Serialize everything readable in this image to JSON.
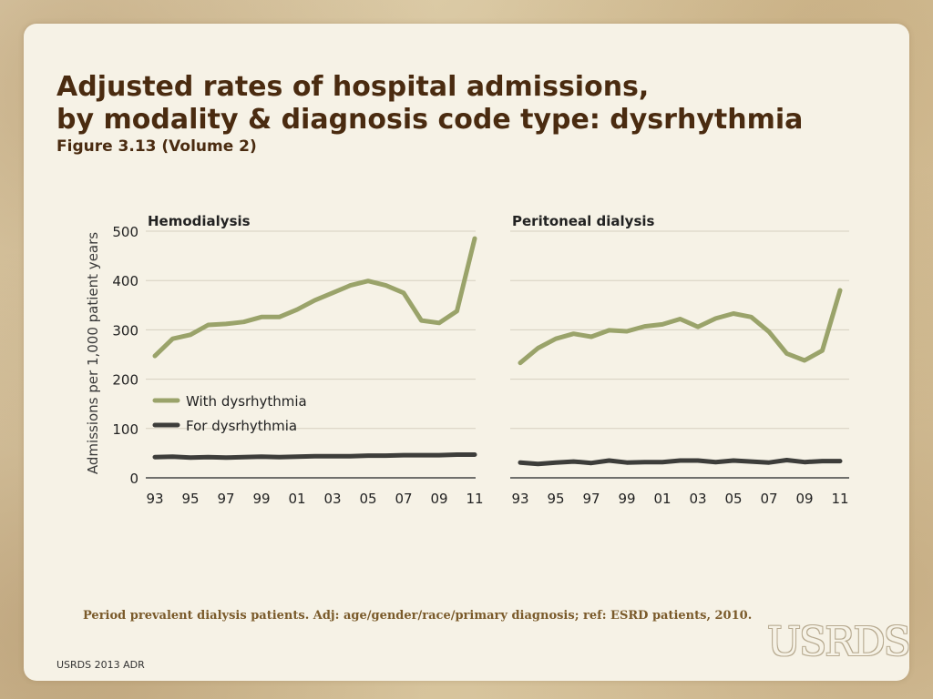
{
  "title_line1": "Adjusted rates of hospital admissions,",
  "title_line2": "by modality & diagnosis code type: dysrhythmia",
  "subtitle": "Figure 3.13 (Volume 2)",
  "footnote": "Period prevalent dialysis patients. Adj: age/gender/race/primary diagnosis; ref: ESRD patients, 2010.",
  "footer": "USRDS 2013 ADR",
  "logo": "USRDS",
  "colors": {
    "with": "#9aa36a",
    "for": "#3d3d3a",
    "grid": "#d6d0c0",
    "axis": "#444444"
  },
  "chart_data": {
    "type": "line",
    "ylabel": "Admissions per 1,000 patient years",
    "ylim": [
      0,
      500
    ],
    "yticks": [
      0,
      100,
      200,
      300,
      400,
      500
    ],
    "x": [
      "93",
      "94",
      "95",
      "96",
      "97",
      "98",
      "99",
      "00",
      "01",
      "02",
      "03",
      "04",
      "05",
      "06",
      "07",
      "08",
      "09",
      "10",
      "11"
    ],
    "xtick_labels": [
      "93",
      "95",
      "97",
      "99",
      "01",
      "03",
      "05",
      "07",
      "09",
      "11"
    ],
    "legend": [
      "With dysrhythmia",
      "For dysrhythmia"
    ],
    "legend_position": "lower-left of first panel",
    "grid": true,
    "panels": [
      {
        "name": "Hemodialysis",
        "series": [
          {
            "name": "With dysrhythmia",
            "values": [
              247,
              282,
              290,
              310,
              312,
              316,
              326,
              326,
              341,
              360,
              375,
              390,
              399,
              390,
              375,
              319,
              314,
              338,
              485
            ]
          },
          {
            "name": "For dysrhythmia",
            "values": [
              42,
              43,
              41,
              42,
              41,
              42,
              43,
              42,
              43,
              44,
              44,
              44,
              45,
              45,
              46,
              46,
              46,
              47,
              47
            ]
          }
        ]
      },
      {
        "name": "Peritoneal dialysis",
        "series": [
          {
            "name": "With dysrhythmia",
            "values": [
              233,
              263,
              282,
              292,
              286,
              299,
              297,
              307,
              311,
              322,
              306,
              323,
              333,
              326,
              296,
              252,
              238,
              258,
              380
            ]
          },
          {
            "name": "For dysrhythmia",
            "values": [
              31,
              28,
              31,
              33,
              30,
              35,
              31,
              32,
              32,
              35,
              35,
              32,
              35,
              33,
              31,
              36,
              32,
              34,
              34
            ]
          }
        ]
      }
    ]
  }
}
